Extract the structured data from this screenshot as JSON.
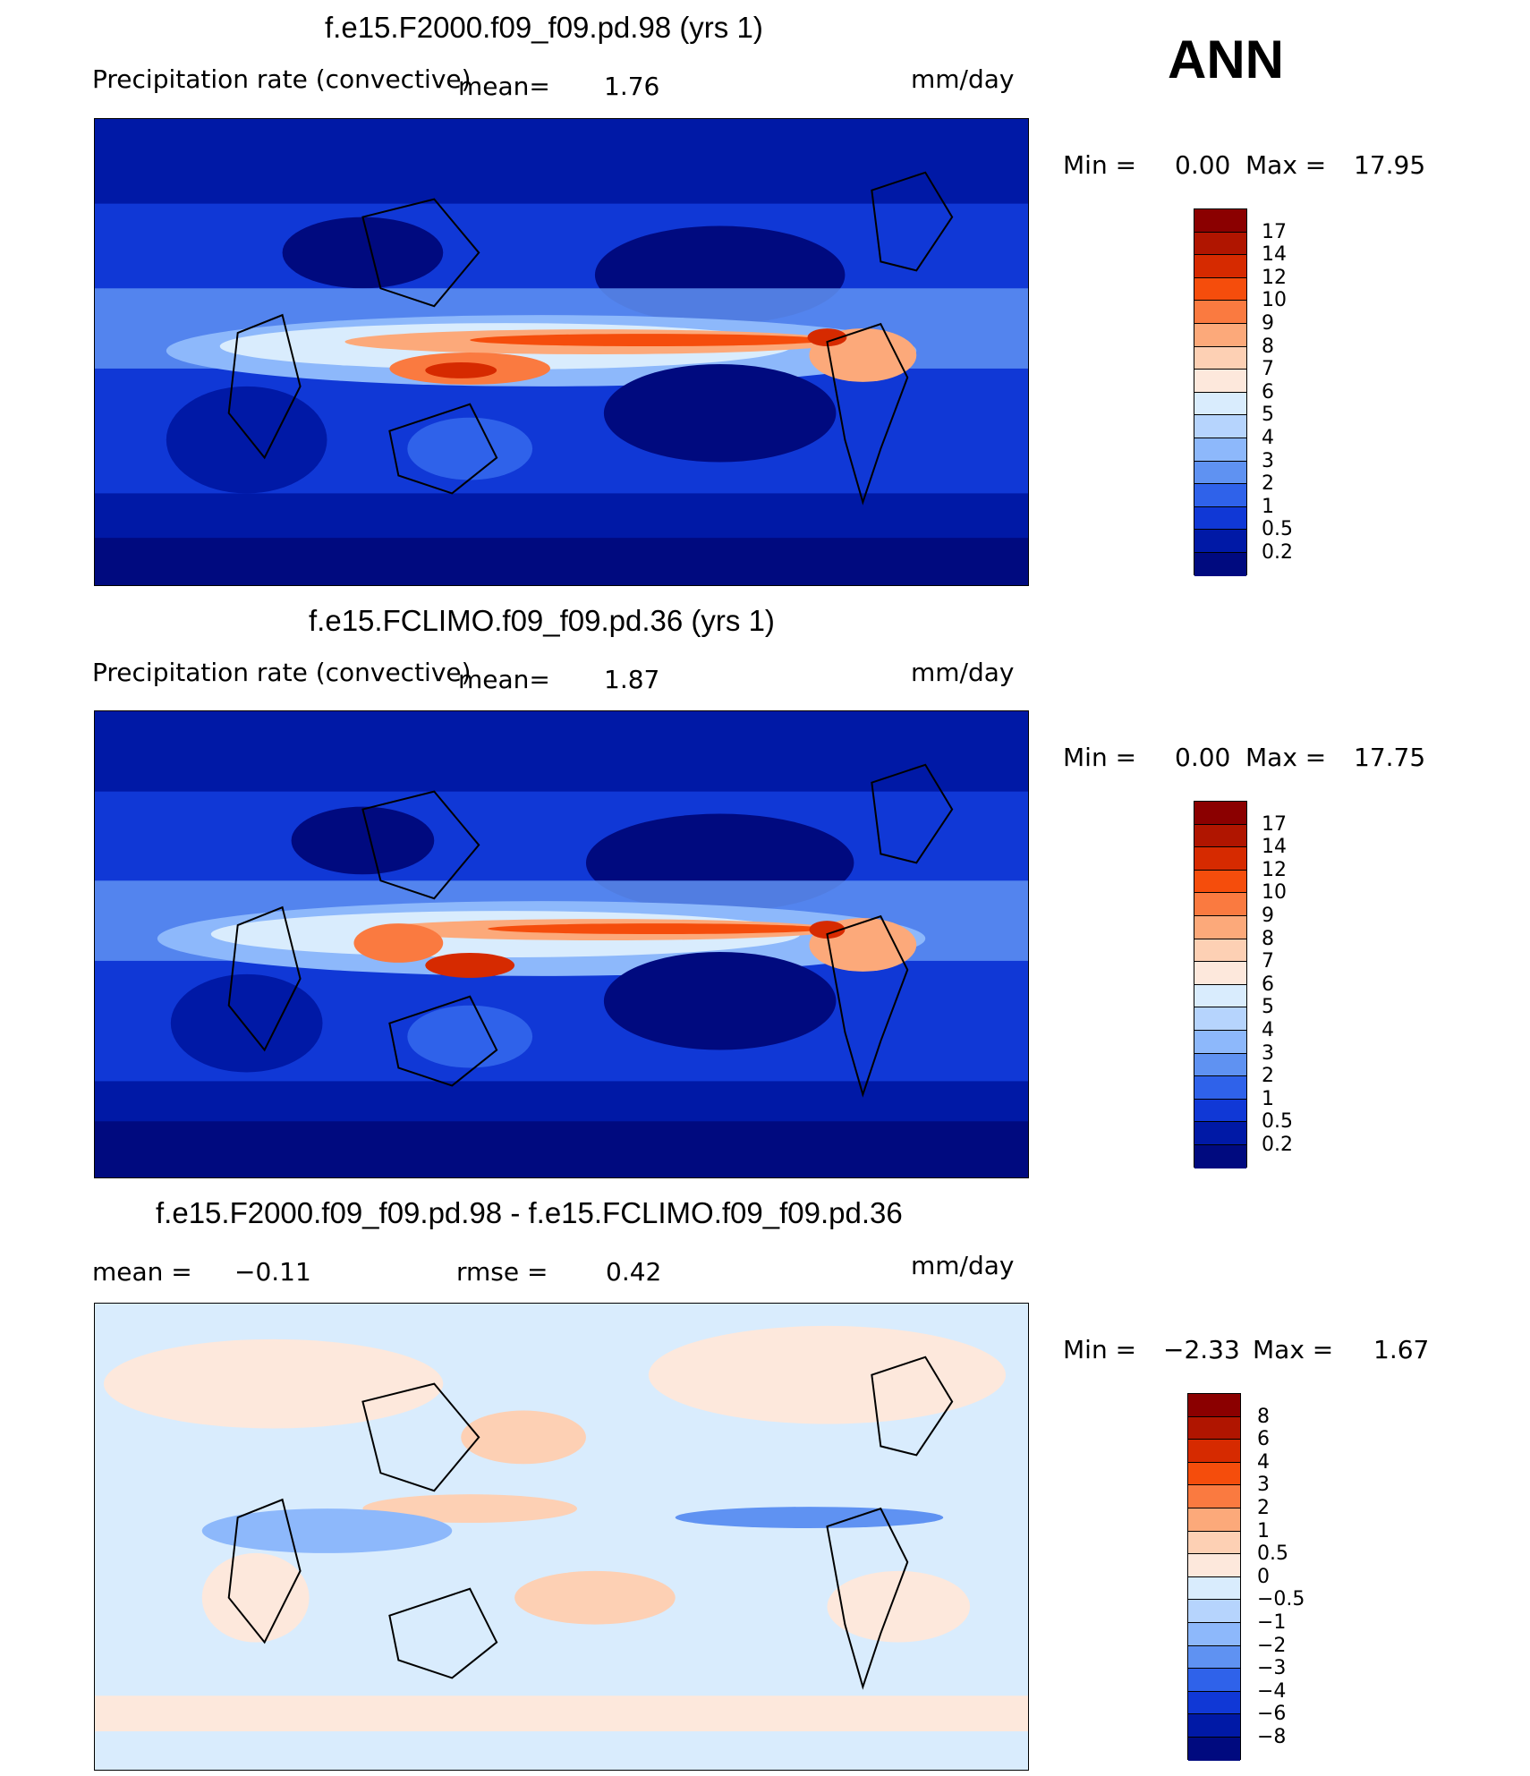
{
  "season": "ANN",
  "panels": [
    {
      "title": "f.e15.F2000.f09_f09.pd.98 (yrs 1)",
      "variable": "Precipitation rate (convective)",
      "mean_label": "mean=",
      "mean_value": "1.76",
      "units": "mm/day",
      "min_label": "Min =",
      "min_value": "0.00",
      "max_label": "Max =",
      "max_value": "17.95",
      "levels": [
        "17",
        "14",
        "12",
        "10",
        "9",
        "8",
        "7",
        "6",
        "5",
        "4",
        "3",
        "2",
        "1",
        "0.5",
        "0.2"
      ],
      "colors": [
        "#8b0000",
        "#b01500",
        "#d62a00",
        "#f54d0c",
        "#fa7a40",
        "#fca97a",
        "#fdd0b4",
        "#fde8dc",
        "#d9ecfd",
        "#b6d4fd",
        "#8db8fb",
        "#5f92f2",
        "#2f62ea",
        "#1038d6",
        "#0019a6",
        "#000a7f"
      ]
    },
    {
      "title": "f.e15.FCLIMO.f09_f09.pd.36 (yrs 1)",
      "variable": "Precipitation rate (convective)",
      "mean_label": "mean=",
      "mean_value": "1.87",
      "units": "mm/day",
      "min_label": "Min =",
      "min_value": "0.00",
      "max_label": "Max =",
      "max_value": "17.75",
      "levels": [
        "17",
        "14",
        "12",
        "10",
        "9",
        "8",
        "7",
        "6",
        "5",
        "4",
        "3",
        "2",
        "1",
        "0.5",
        "0.2"
      ],
      "colors": [
        "#8b0000",
        "#b01500",
        "#d62a00",
        "#f54d0c",
        "#fa7a40",
        "#fca97a",
        "#fdd0b4",
        "#fde8dc",
        "#d9ecfd",
        "#b6d4fd",
        "#8db8fb",
        "#5f92f2",
        "#2f62ea",
        "#1038d6",
        "#0019a6",
        "#000a7f"
      ]
    },
    {
      "title": "f.e15.F2000.f09_f09.pd.98 - f.e15.FCLIMO.f09_f09.pd.36",
      "mean_label": "mean =",
      "mean_value": "−0.11",
      "rmse_label": "rmse =",
      "rmse_value": "0.42",
      "units": "mm/day",
      "min_label": "Min =",
      "min_value": "−2.33",
      "max_label": "Max =",
      "max_value": "1.67",
      "levels": [
        "8",
        "6",
        "4",
        "3",
        "2",
        "1",
        "0.5",
        "0",
        "−0.5",
        "−1",
        "−2",
        "−3",
        "−4",
        "−6",
        "−8"
      ],
      "colors": [
        "#8b0000",
        "#b01500",
        "#d62a00",
        "#f54d0c",
        "#fa7a40",
        "#fca97a",
        "#fdd0b4",
        "#fde8dc",
        "#d9ecfd",
        "#b6d4fd",
        "#8db8fb",
        "#5f92f2",
        "#2f62ea",
        "#1038d6",
        "#0019a6",
        "#000a7f"
      ]
    }
  ]
}
